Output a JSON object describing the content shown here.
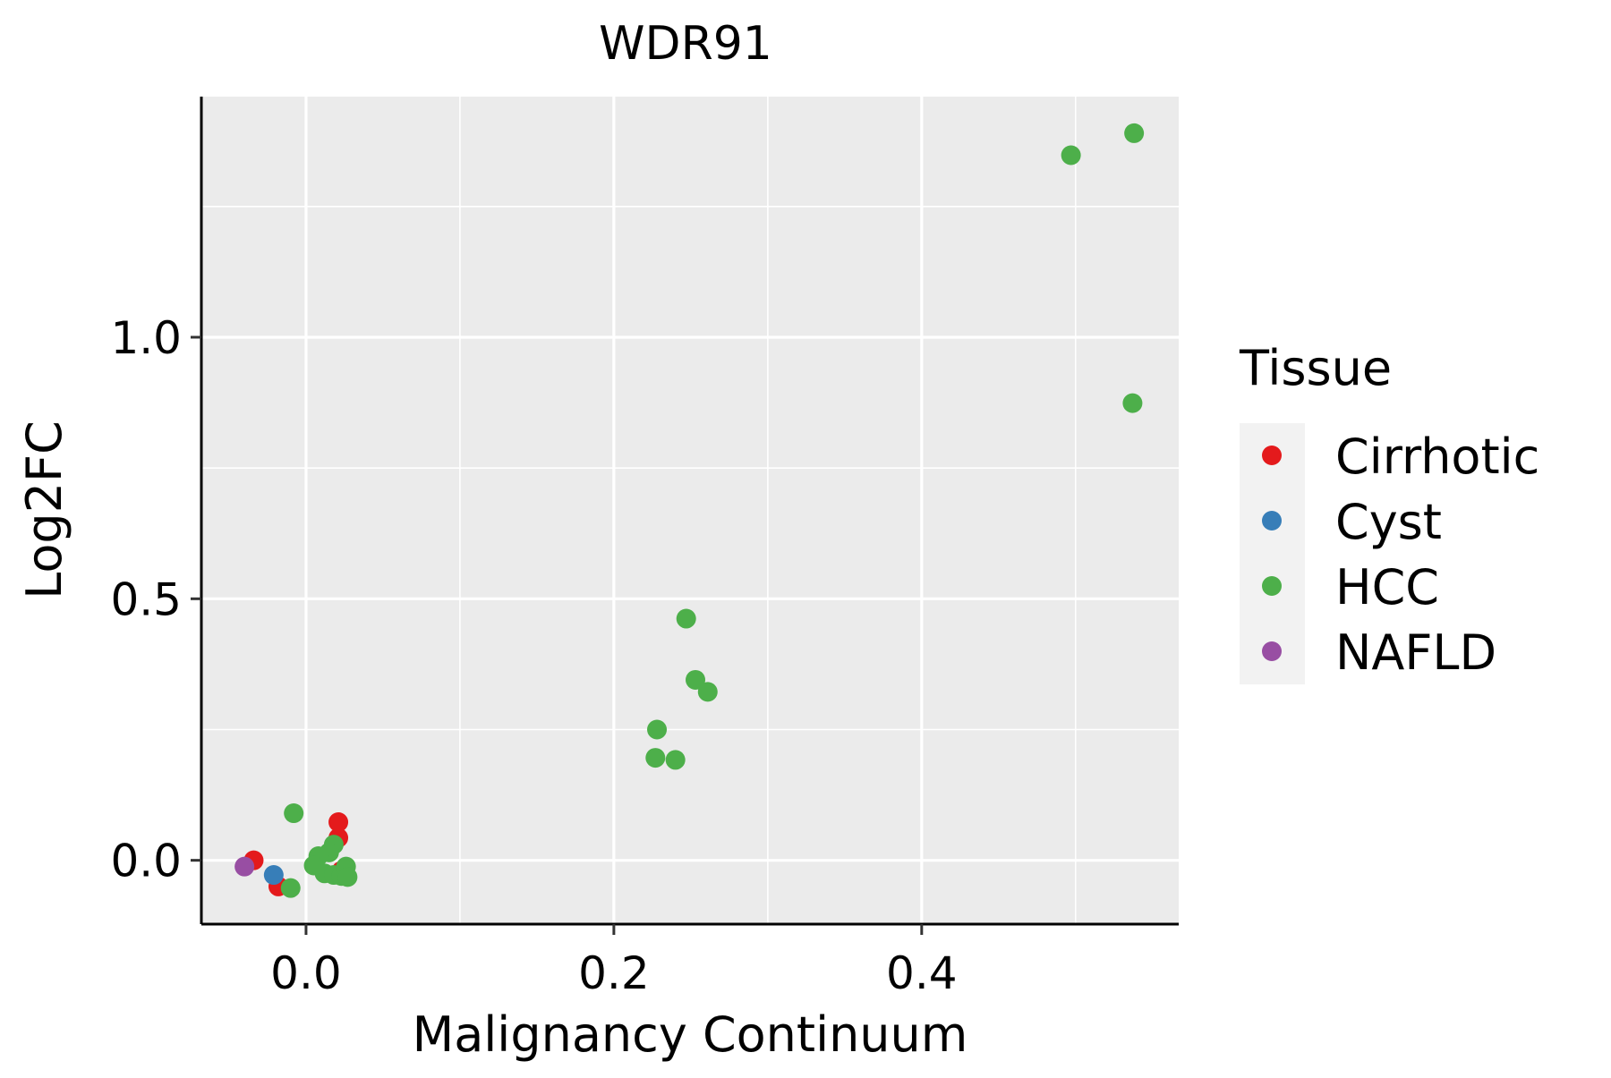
{
  "chart_data": {
    "type": "scatter",
    "title": "WDR91",
    "xlabel": "Malignancy Continuum",
    "ylabel": "Log2FC",
    "xlim": [
      -0.068,
      0.567
    ],
    "ylim": [
      -0.122,
      1.46
    ],
    "x_ticks": [
      0.0,
      0.2,
      0.4
    ],
    "x_tick_labels": [
      "0.0",
      "0.2",
      "0.4"
    ],
    "y_ticks": [
      0.0,
      0.5,
      1.0
    ],
    "y_tick_labels": [
      "0.0",
      "0.5",
      "1.0"
    ],
    "x_minor_grid": [
      0.1,
      0.3,
      0.5
    ],
    "y_minor_grid": [
      0.25,
      0.75,
      1.25
    ],
    "grid": true,
    "legend": {
      "title": "Tissue",
      "position": "right"
    },
    "series": [
      {
        "name": "Cirrhotic",
        "color": "#E41A1C",
        "points": [
          {
            "x": -0.034,
            "y": 0.0
          },
          {
            "x": -0.018,
            "y": -0.05
          },
          {
            "x": 0.021,
            "y": 0.073
          },
          {
            "x": 0.021,
            "y": 0.043
          },
          {
            "x": 0.023,
            "y": -0.02
          }
        ]
      },
      {
        "name": "Cyst",
        "color": "#377EB8",
        "points": [
          {
            "x": -0.021,
            "y": -0.028
          }
        ]
      },
      {
        "name": "HCC",
        "color": "#4DAF4A",
        "points": [
          {
            "x": 0.538,
            "y": 1.39
          },
          {
            "x": 0.497,
            "y": 1.348
          },
          {
            "x": 0.537,
            "y": 0.874
          },
          {
            "x": 0.247,
            "y": 0.462
          },
          {
            "x": 0.253,
            "y": 0.345
          },
          {
            "x": 0.261,
            "y": 0.322
          },
          {
            "x": 0.228,
            "y": 0.25
          },
          {
            "x": 0.227,
            "y": 0.196
          },
          {
            "x": 0.24,
            "y": 0.192
          },
          {
            "x": -0.008,
            "y": 0.09
          },
          {
            "x": -0.01,
            "y": -0.053
          },
          {
            "x": 0.018,
            "y": 0.03
          },
          {
            "x": 0.015,
            "y": 0.015
          },
          {
            "x": 0.008,
            "y": 0.008
          },
          {
            "x": 0.005,
            "y": -0.01
          },
          {
            "x": 0.012,
            "y": -0.025
          },
          {
            "x": 0.018,
            "y": -0.028
          },
          {
            "x": 0.023,
            "y": -0.03
          },
          {
            "x": 0.026,
            "y": -0.012
          },
          {
            "x": 0.027,
            "y": -0.032
          }
        ]
      },
      {
        "name": "NAFLD",
        "color": "#984EA3",
        "points": [
          {
            "x": -0.04,
            "y": -0.012
          }
        ]
      }
    ]
  }
}
